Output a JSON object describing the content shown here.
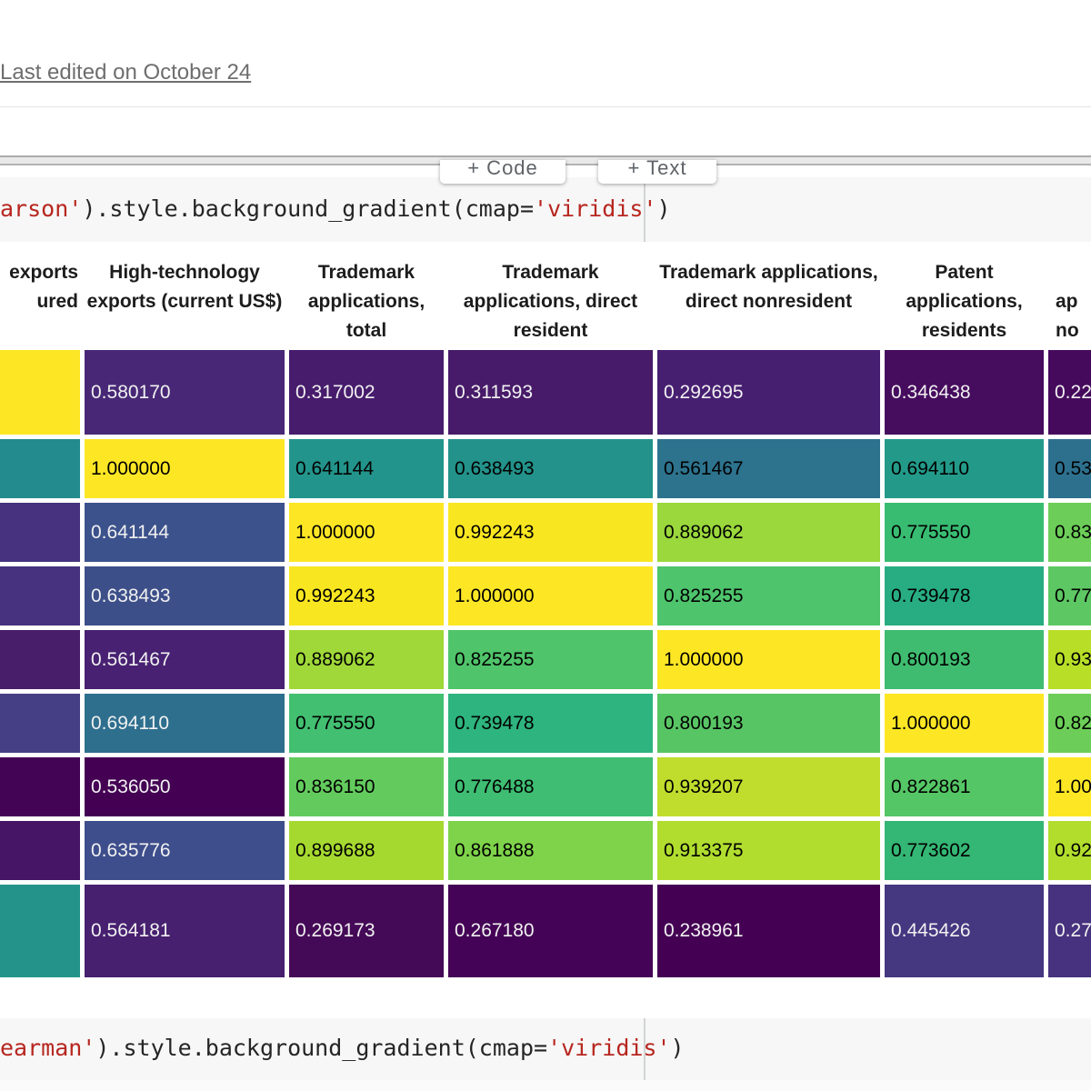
{
  "page": {
    "last_edited": "Last edited on October 24"
  },
  "toolbar": {
    "code_button": "+ Code",
    "text_button": "+ Text"
  },
  "colors": {
    "code_string": "#b7261f",
    "code_plain": "#252525",
    "code_cell_bg": "#f7f7f7",
    "viridis_min": "#440154",
    "viridis_max": "#fde725"
  },
  "code_cells": [
    {
      "segments": [
        {
          "text": "arson'",
          "kind": "str"
        },
        {
          "text": ").style.background_gradient(cmap=",
          "kind": "plain"
        },
        {
          "text": "'viridis'",
          "kind": "str"
        },
        {
          "text": ")",
          "kind": "plain"
        }
      ]
    },
    {
      "segments": [
        {
          "text": "earman'",
          "kind": "str"
        },
        {
          "text": ").style.background_gradient(cmap=",
          "kind": "plain"
        },
        {
          "text": "'viridis'",
          "kind": "str"
        },
        {
          "text": ")",
          "kind": "plain"
        }
      ]
    }
  ],
  "table": {
    "columns": [
      {
        "key": "clipped-left",
        "header_lines": [
          "exports",
          "ured"
        ],
        "align": "right"
      },
      {
        "key": "hightech-exports",
        "header": "High-technology exports (current US$)",
        "align": "center"
      },
      {
        "key": "trademark-total",
        "header": "Trademark applications, total",
        "align": "center"
      },
      {
        "key": "trademark-resident",
        "header": "Trademark applications, direct resident",
        "align": "center"
      },
      {
        "key": "trademark-nonresident",
        "header": "Trademark applications, direct nonresident",
        "align": "center"
      },
      {
        "key": "patent-residents",
        "header": "Patent applications, residents",
        "align": "center"
      },
      {
        "key": "clipped-right",
        "header_lines": [
          "",
          "ap",
          "no"
        ],
        "align": "left"
      }
    ],
    "rows": [
      {
        "cells": [
          {
            "v": "",
            "bg": "#fde725",
            "fg": "#000000"
          },
          {
            "v": "0.580170",
            "bg": "#482876",
            "fg": "#f1f1f1"
          },
          {
            "v": "0.317002",
            "bg": "#471c6c",
            "fg": "#f1f1f1"
          },
          {
            "v": "0.311593",
            "bg": "#471b69",
            "fg": "#f1f1f1"
          },
          {
            "v": "0.292695",
            "bg": "#471f71",
            "fg": "#f1f1f1"
          },
          {
            "v": "0.346438",
            "bg": "#460c5e",
            "fg": "#f1f1f1"
          },
          {
            "v": "0.22",
            "bg": "#460a5d",
            "fg": "#f1f1f1"
          }
        ]
      },
      {
        "cells": [
          {
            "v": "",
            "bg": "#238a8d",
            "fg": "#000000"
          },
          {
            "v": "1.000000",
            "bg": "#fde725",
            "fg": "#000000"
          },
          {
            "v": "0.641144",
            "bg": "#23948b",
            "fg": "#000000"
          },
          {
            "v": "0.638493",
            "bg": "#23928a",
            "fg": "#000000"
          },
          {
            "v": "0.561467",
            "bg": "#2d738e",
            "fg": "#000000"
          },
          {
            "v": "0.694110",
            "bg": "#239a89",
            "fg": "#000000"
          },
          {
            "v": "0.53",
            "bg": "#2d708e",
            "fg": "#000000"
          }
        ]
      },
      {
        "cells": [
          {
            "v": "",
            "bg": "#46327e",
            "fg": "#000000"
          },
          {
            "v": "0.641144",
            "bg": "#3c528c",
            "fg": "#f1f1f1"
          },
          {
            "v": "1.000000",
            "bg": "#fde725",
            "fg": "#000000"
          },
          {
            "v": "0.992243",
            "bg": "#f8e621",
            "fg": "#000000"
          },
          {
            "v": "0.889062",
            "bg": "#9ad83c",
            "fg": "#000000"
          },
          {
            "v": "0.775550",
            "bg": "#38bc72",
            "fg": "#000000"
          },
          {
            "v": "0.83",
            "bg": "#6cce58",
            "fg": "#000000"
          }
        ]
      },
      {
        "cells": [
          {
            "v": "",
            "bg": "#46327e",
            "fg": "#000000"
          },
          {
            "v": "0.638493",
            "bg": "#3d4f89",
            "fg": "#f1f1f1"
          },
          {
            "v": "0.992243",
            "bg": "#f8e621",
            "fg": "#000000"
          },
          {
            "v": "1.000000",
            "bg": "#fde725",
            "fg": "#000000"
          },
          {
            "v": "0.825255",
            "bg": "#4ec46c",
            "fg": "#000000"
          },
          {
            "v": "0.739478",
            "bg": "#27ad81",
            "fg": "#000000"
          },
          {
            "v": "0.77",
            "bg": "#5dc863",
            "fg": "#000000"
          }
        ]
      },
      {
        "cells": [
          {
            "v": "",
            "bg": "#481e6b",
            "fg": "#000000"
          },
          {
            "v": "0.561467",
            "bg": "#482172",
            "fg": "#f1f1f1"
          },
          {
            "v": "0.889062",
            "bg": "#a0d839",
            "fg": "#000000"
          },
          {
            "v": "0.825255",
            "bg": "#50c46a",
            "fg": "#000000"
          },
          {
            "v": "1.000000",
            "bg": "#fde725",
            "fg": "#000000"
          },
          {
            "v": "0.800193",
            "bg": "#3fbc70",
            "fg": "#000000"
          },
          {
            "v": "0.93",
            "bg": "#b8de28",
            "fg": "#000000"
          }
        ]
      },
      {
        "cells": [
          {
            "v": "",
            "bg": "#453f85",
            "fg": "#000000"
          },
          {
            "v": "0.694110",
            "bg": "#2e6f8e",
            "fg": "#f1f1f1"
          },
          {
            "v": "0.775550",
            "bg": "#42bf71",
            "fg": "#000000"
          },
          {
            "v": "0.739478",
            "bg": "#2eb47e",
            "fg": "#000000"
          },
          {
            "v": "0.800193",
            "bg": "#58c564",
            "fg": "#000000"
          },
          {
            "v": "1.000000",
            "bg": "#fde725",
            "fg": "#000000"
          },
          {
            "v": "0.82",
            "bg": "#6cce58",
            "fg": "#000000"
          }
        ]
      },
      {
        "cells": [
          {
            "v": "",
            "bg": "#440456",
            "fg": "#000000"
          },
          {
            "v": "0.536050",
            "bg": "#440154",
            "fg": "#f1f1f1"
          },
          {
            "v": "0.836150",
            "bg": "#63cb5d",
            "fg": "#000000"
          },
          {
            "v": "0.776488",
            "bg": "#3ebd73",
            "fg": "#000000"
          },
          {
            "v": "0.939207",
            "bg": "#c0dd2d",
            "fg": "#000000"
          },
          {
            "v": "0.822861",
            "bg": "#55c665",
            "fg": "#000000"
          },
          {
            "v": "1.00",
            "bg": "#fde725",
            "fg": "#000000"
          }
        ]
      },
      {
        "cells": [
          {
            "v": "",
            "bg": "#471566",
            "fg": "#000000"
          },
          {
            "v": "0.635776",
            "bg": "#3e4e8c",
            "fg": "#f1f1f1"
          },
          {
            "v": "0.899688",
            "bg": "#a6d930",
            "fg": "#000000"
          },
          {
            "v": "0.861888",
            "bg": "#7ed34a",
            "fg": "#000000"
          },
          {
            "v": "0.913375",
            "bg": "#b1dd2f",
            "fg": "#000000"
          },
          {
            "v": "0.773602",
            "bg": "#34b674",
            "fg": "#000000"
          },
          {
            "v": "0.92",
            "bg": "#b2dd2d",
            "fg": "#000000"
          }
        ]
      },
      {
        "cells": [
          {
            "v": "",
            "bg": "#24948a",
            "fg": "#000000"
          },
          {
            "v": "0.564181",
            "bg": "#472070",
            "fg": "#f1f1f1"
          },
          {
            "v": "0.269173",
            "bg": "#450a57",
            "fg": "#f1f1f1"
          },
          {
            "v": "0.267180",
            "bg": "#440356",
            "fg": "#f1f1f1"
          },
          {
            "v": "0.238961",
            "bg": "#440154",
            "fg": "#f1f1f1"
          },
          {
            "v": "0.445426",
            "bg": "#453780",
            "fg": "#f1f1f1"
          },
          {
            "v": "0.27",
            "bg": "#46327e",
            "fg": "#f1f1f1"
          }
        ]
      }
    ]
  }
}
